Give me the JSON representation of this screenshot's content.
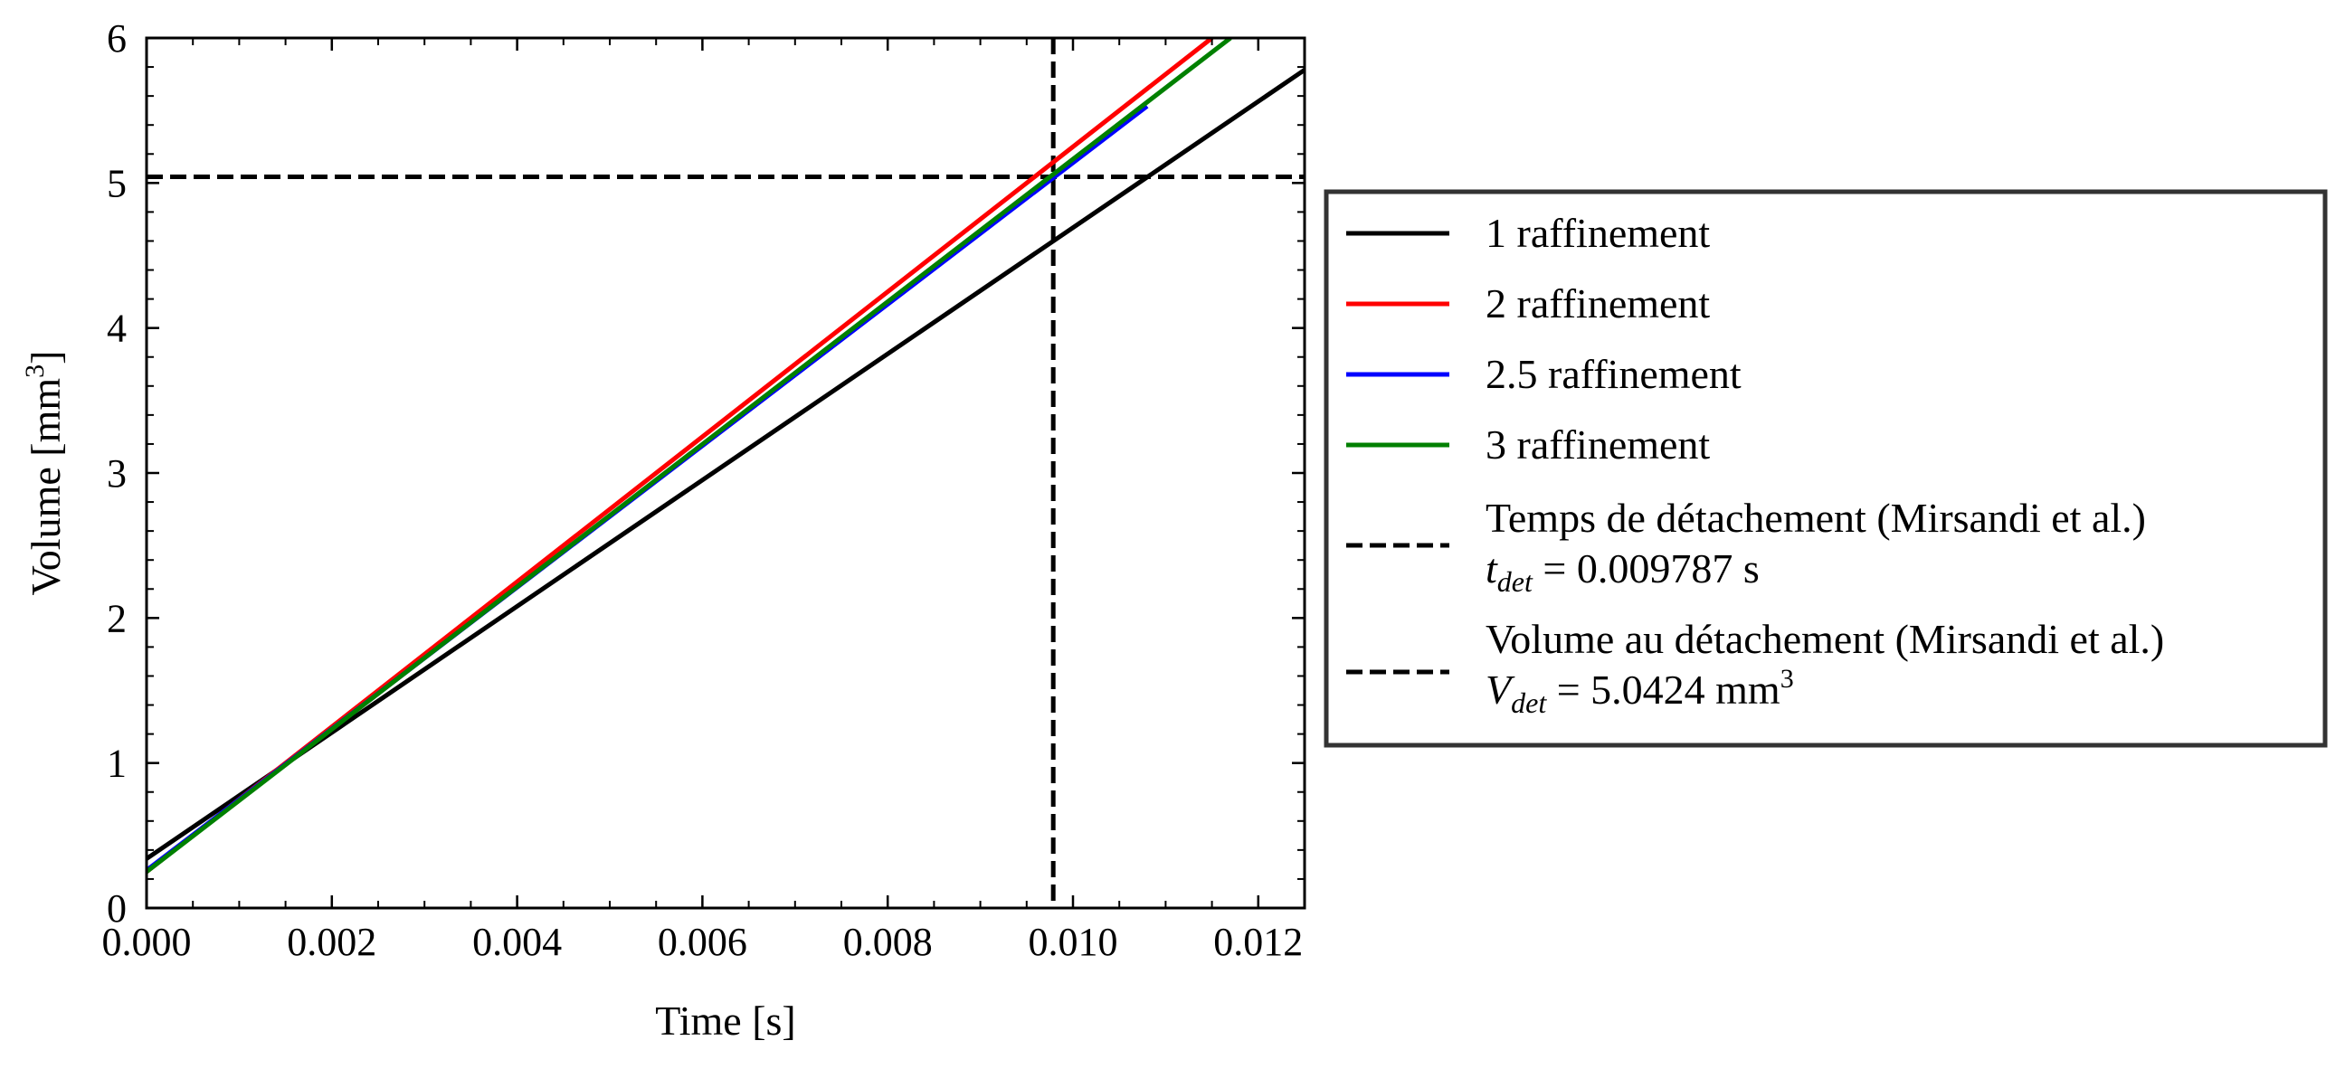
{
  "chart_data": {
    "type": "line",
    "xlabel": "Time [s]",
    "ylabel_main": "Volume [mm",
    "ylabel_sup": "3",
    "ylabel_close": "]",
    "xlim": [
      0.0,
      0.0125
    ],
    "ylim": [
      0,
      6
    ],
    "xticks": [
      0.0,
      0.002,
      0.004,
      0.006,
      0.008,
      0.01,
      0.012
    ],
    "xtick_labels": [
      "0.000",
      "0.002",
      "0.004",
      "0.006",
      "0.008",
      "0.010",
      "0.012"
    ],
    "yticks": [
      0,
      1,
      2,
      3,
      4,
      5,
      6
    ],
    "ytick_labels": [
      "0",
      "1",
      "2",
      "3",
      "4",
      "5",
      "6"
    ],
    "grid": false,
    "legend_placement": "outside-right",
    "series": [
      {
        "name": "1 raffinement",
        "color": "#000000",
        "dash": "solid",
        "x": [
          0.0,
          0.0125
        ],
        "y": [
          0.34,
          5.78
        ]
      },
      {
        "name": "2 raffinement",
        "color": "#ff0000",
        "dash": "solid",
        "x": [
          0.0,
          0.0115
        ],
        "y": [
          0.25,
          6.0
        ]
      },
      {
        "name": "2.5 raffinement",
        "color": "#0000ff",
        "dash": "solid",
        "x": [
          0.0,
          0.0108
        ],
        "y": [
          0.26,
          5.53
        ]
      },
      {
        "name": "3 raffinement",
        "color": "#008000",
        "dash": "solid",
        "x": [
          0.0,
          0.0117
        ],
        "y": [
          0.25,
          6.0
        ]
      }
    ],
    "reference_lines": [
      {
        "orientation": "vertical",
        "value": 0.009787,
        "color": "#000000",
        "dash": "dashed",
        "legend_line1": "Temps de détachement (Mirsandi et al.)",
        "legend_line2_var": "t",
        "legend_line2_sub": "det",
        "legend_line2_rest": " = 0.009787 s",
        "legend_line2_sup": ""
      },
      {
        "orientation": "horizontal",
        "value": 5.0424,
        "color": "#000000",
        "dash": "dashed",
        "legend_line1": "Volume au détachement (Mirsandi et al.)",
        "legend_line2_var": "V",
        "legend_line2_sub": "det",
        "legend_line2_rest": " = 5.0424 mm",
        "legend_line2_sup": "3"
      }
    ]
  }
}
